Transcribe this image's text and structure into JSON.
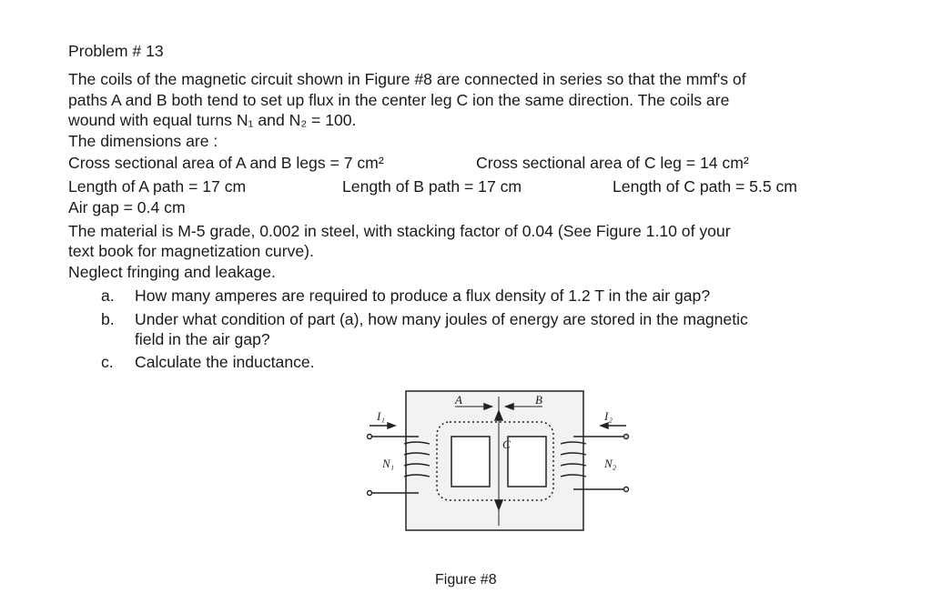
{
  "problem": {
    "title": "Problem # 13",
    "intro": [
      "The coils of the magnetic circuit shown in Figure #8 are connected in series so that the mmf's of",
      "paths A and B both tend to set up flux in the center leg C ion the same direction. The coils are",
      "wound with equal turns N₁ and N₂ = 100.",
      "The dimensions are :"
    ],
    "dimensions": [
      [
        "Cross sectional area of A and B legs = 7 cm²",
        "Cross sectional area of C leg = 14 cm²"
      ],
      [
        "Length of A path = 17 cm",
        "Length of B path = 17 cm",
        "Length of C path = 5.5 cm"
      ],
      [
        "Air gap = 0.4 cm"
      ]
    ],
    "material": [
      "The material is M-5 grade, 0.002 in steel, with stacking factor of 0.04 (See Figure 1.10 of your",
      "text book for magnetization curve).",
      "Neglect fringing and leakage."
    ],
    "questions": [
      {
        "marker": "a.",
        "lines": [
          "How many amperes are required to produce a flux density of 1.2 T in the air gap?"
        ]
      },
      {
        "marker": "b.",
        "lines": [
          "Under what condition of part (a), how many joules of energy are stored in the magnetic",
          "field in the air gap?"
        ]
      },
      {
        "marker": "c.",
        "lines": [
          "Calculate the inductance."
        ]
      }
    ]
  },
  "figure": {
    "labels": {
      "a": "A",
      "b": "B",
      "c": "C",
      "i1": "I₁",
      "i2": "I₂",
      "n1": "N₁",
      "n2": "N₂"
    },
    "caption": "Figure #8"
  }
}
